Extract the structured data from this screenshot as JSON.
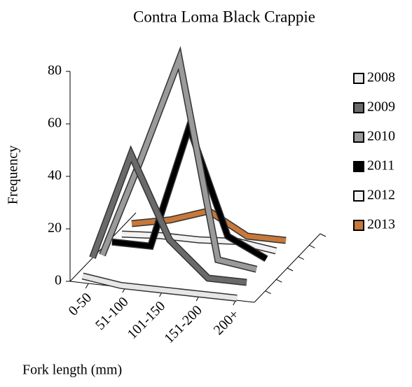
{
  "chart_data": {
    "type": "line3d",
    "title": "Contra Loma Black Crappie",
    "x_label": "Fork length (mm)",
    "y_label": "Frequency",
    "categories": [
      "0-50",
      "51-100",
      "101-150",
      "151-200",
      "200+"
    ],
    "series": [
      {
        "name": "2008",
        "color": "#e6e6e6",
        "values": [
          2,
          0,
          0,
          0,
          0
        ]
      },
      {
        "name": "2009",
        "color": "#6a6a6a",
        "values": [
          5,
          46,
          15,
          2,
          2
        ]
      },
      {
        "name": "2010",
        "color": "#9a9a9a",
        "values": [
          2,
          40,
          80,
          5,
          3
        ]
      },
      {
        "name": "2011",
        "color": "#000000",
        "values": [
          3,
          3,
          50,
          10,
          3
        ]
      },
      {
        "name": "2012",
        "color": "#f2f2f2",
        "values": [
          2,
          3,
          3,
          4,
          2
        ]
      },
      {
        "name": "2013",
        "color": "#c8783a",
        "values": [
          2,
          5,
          10,
          2,
          2
        ]
      }
    ],
    "ylim": [
      0,
      80
    ],
    "yticks": [
      0,
      20,
      40,
      60,
      80
    ],
    "legend": "right"
  }
}
